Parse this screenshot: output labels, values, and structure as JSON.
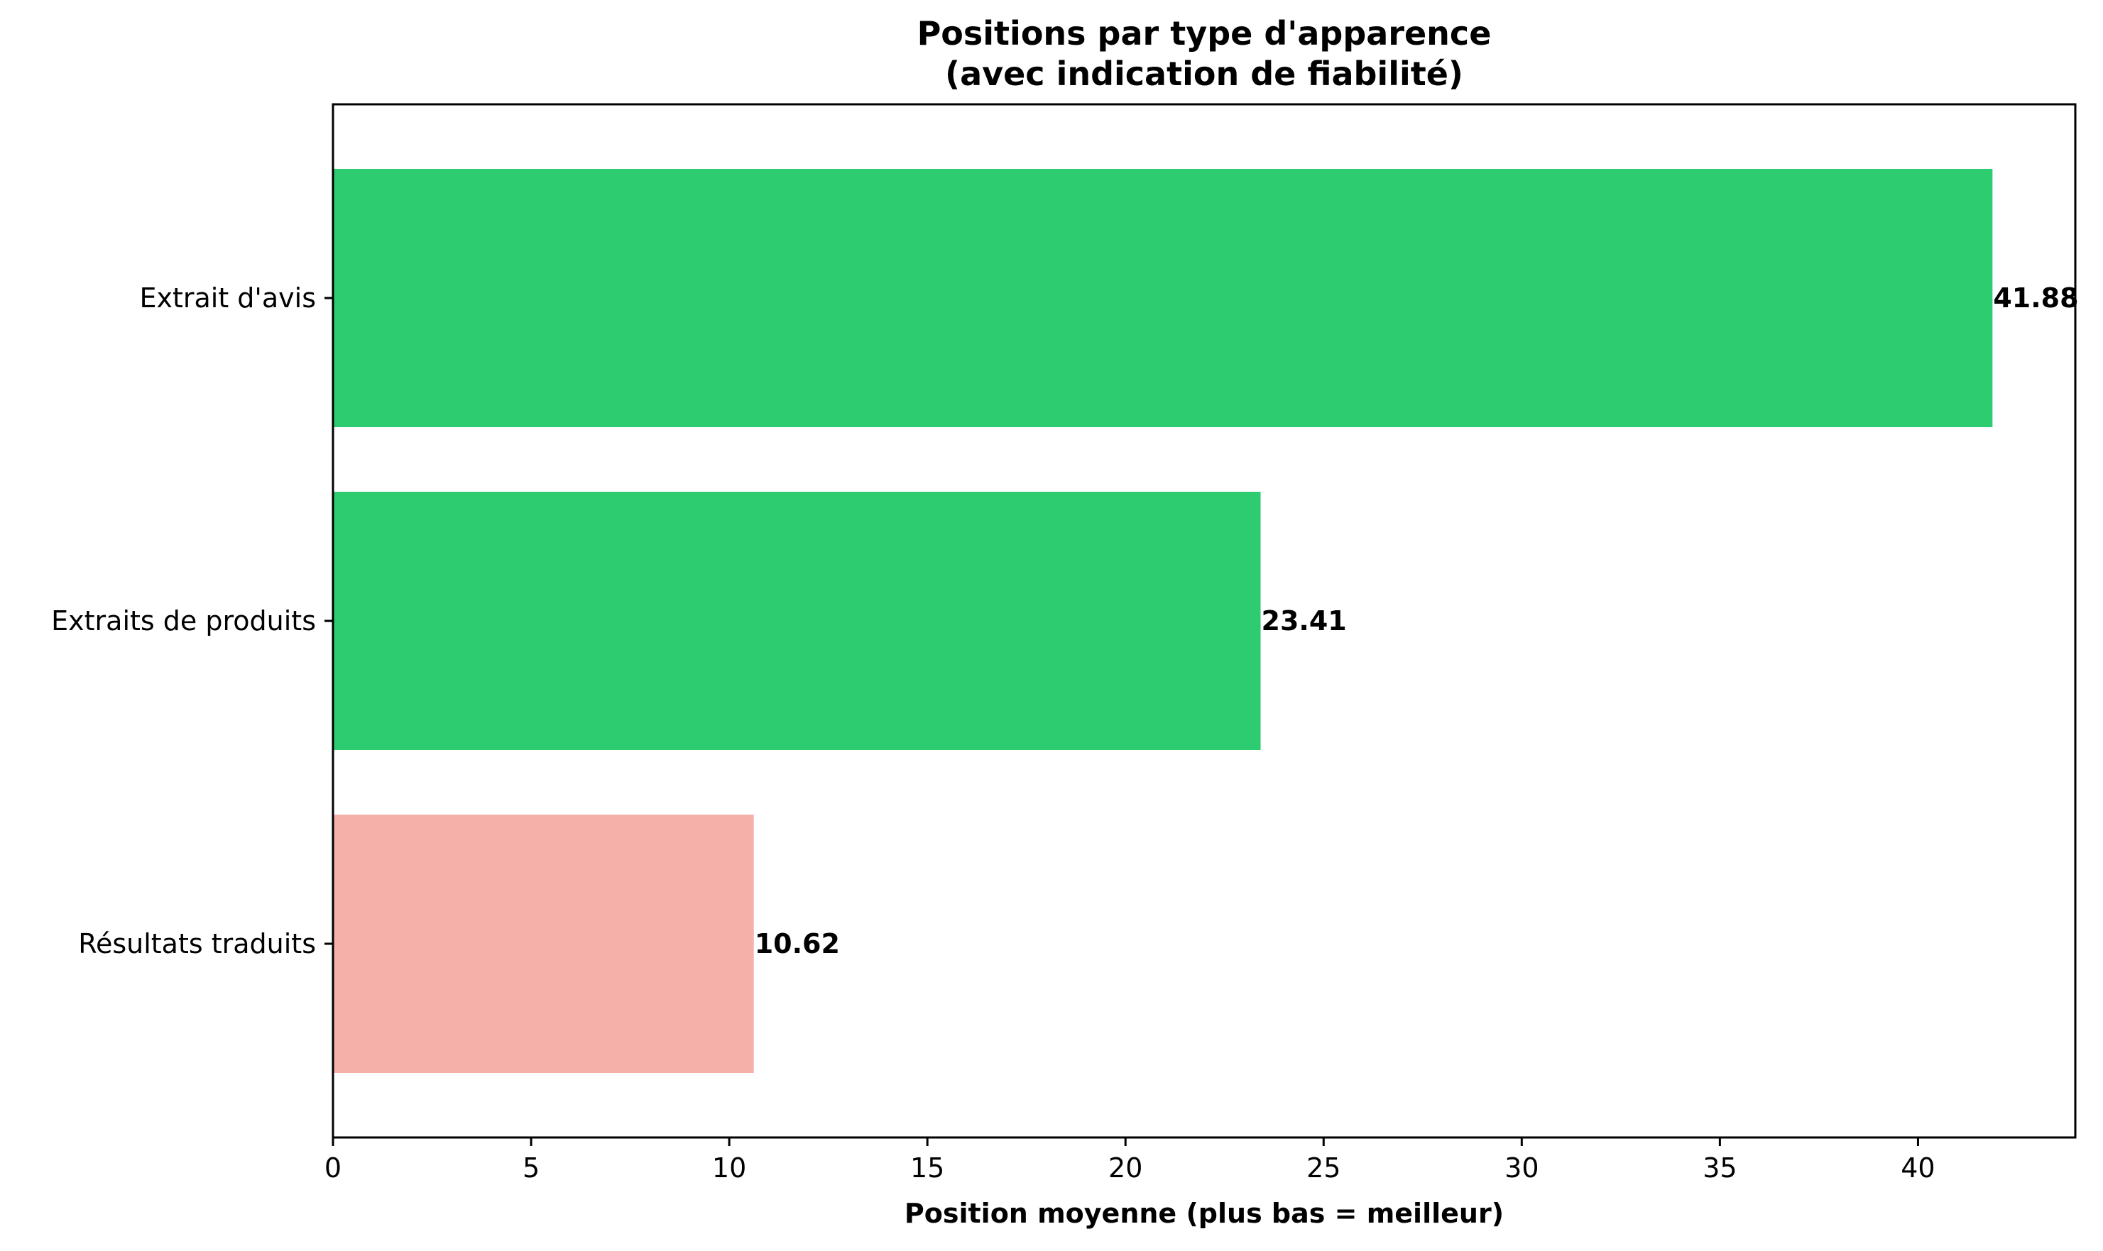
{
  "chart_data": {
    "type": "bar",
    "orientation": "horizontal",
    "title": "Positions par type d'apparence",
    "subtitle": "(avec indication de fiabilité)",
    "xlabel": "Position moyenne (plus bas = meilleur)",
    "ylabel": "",
    "xlim": [
      0,
      43.97
    ],
    "xticks": [
      0,
      5,
      10,
      15,
      20,
      25,
      30,
      35,
      40
    ],
    "categories": [
      "Extrait d'avis",
      "Extraits de produits",
      "Résultats traduits"
    ],
    "values": [
      41.88,
      23.41,
      10.62
    ],
    "value_labels": [
      "41.88",
      "23.41",
      "10.62"
    ],
    "bar_colors": [
      "#2ecc71",
      "#2ecc71",
      "#f5b0aa"
    ],
    "grid": false,
    "legend": "none"
  }
}
